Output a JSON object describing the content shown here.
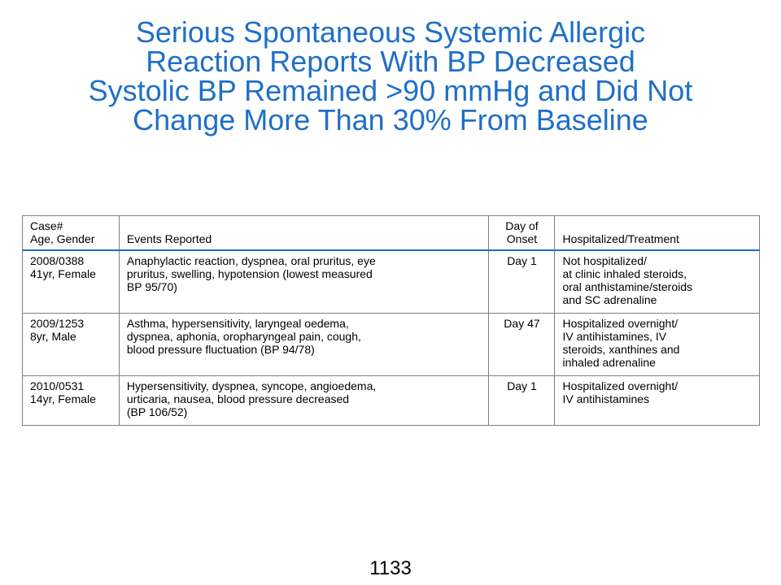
{
  "title": {
    "lines": [
      "Serious Spontaneous Systemic Allergic",
      "Reaction Reports With BP Decreased",
      "Systolic BP Remained >90 mmHg and Did Not",
      "Change More Than 30% From Baseline"
    ]
  },
  "table": {
    "headers": {
      "case": [
        "Case#",
        "Age, Gender"
      ],
      "events": "Events Reported",
      "onset": [
        "Day of",
        "Onset"
      ],
      "hospitalized": "Hospitalized/Treatment"
    },
    "rows": [
      {
        "case": [
          "2008/0388",
          "41yr, Female"
        ],
        "events": [
          "Anaphylactic reaction, dyspnea, oral pruritus, eye",
          "pruritus, swelling, hypotension (lowest measured",
          "BP 95/70)"
        ],
        "onset": "Day 1",
        "hospitalized": [
          "Not hospitalized/",
          "at clinic inhaled steroids,",
          "oral anthistamine/steroids",
          "and SC adrenaline"
        ]
      },
      {
        "case": [
          "2009/1253",
          "8yr, Male"
        ],
        "events": [
          "Asthma, hypersensitivity, laryngeal oedema,",
          "dyspnea, aphonia, oropharyngeal pain, cough,",
          "blood pressure fluctuation (BP 94/78)"
        ],
        "onset": "Day 47",
        "hospitalized": [
          "Hospitalized overnight/",
          "IV antihistamines, IV",
          "steroids, xanthines and",
          "inhaled adrenaline"
        ]
      },
      {
        "case": [
          "2010/0531",
          "14yr, Female"
        ],
        "events": [
          "Hypersensitivity, dyspnea, syncope, angioedema,",
          "urticaria, nausea, blood pressure decreased",
          "(BP 106/52)"
        ],
        "onset": "Day 1",
        "hospitalized": [
          "Hospitalized overnight/",
          "IV antihistamines"
        ]
      }
    ]
  },
  "page_number": "1133",
  "colors": {
    "title": "#1f6fc8",
    "header_rule": "#1f6fc8",
    "border": "#7f7f7f"
  }
}
